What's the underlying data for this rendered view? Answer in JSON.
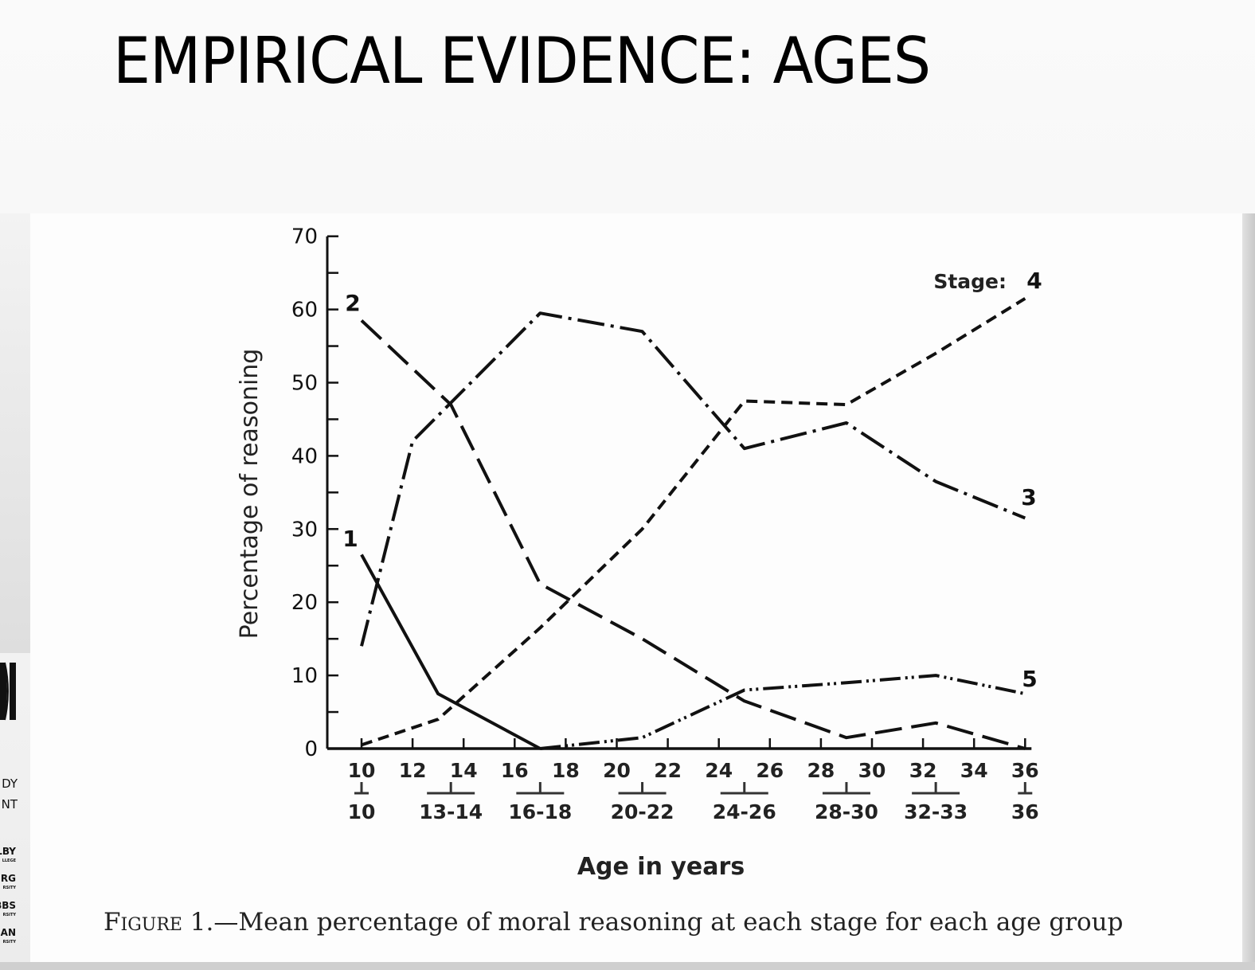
{
  "slide": {
    "title": "EMPIRICAL EVIDENCE: AGES",
    "sidebar_logo": {
      "lines": [
        "DY",
        "NT"
      ],
      "names": [
        {
          "name": "LBY",
          "inst": "LLEGE"
        },
        {
          "name": "RG",
          "inst": "RSITY"
        },
        {
          "name": "BBS",
          "inst": "RSITY"
        },
        {
          "name": "AN",
          "inst": "RSITY"
        }
      ]
    }
  },
  "figure": {
    "caption_prefix": "Figure 1.",
    "caption_text": "—Mean percentage of moral reasoning at each stage for each age group",
    "legend_label": "Stage:"
  },
  "chart_data": {
    "type": "line",
    "title": "Mean percentage of moral reasoning at each stage for each age group",
    "xlabel": "Age in years",
    "ylabel": "Percentage of reasoning",
    "ylim": [
      0,
      70
    ],
    "y_ticks": [
      0,
      10,
      20,
      30,
      40,
      50,
      60,
      70
    ],
    "x_ticks": [
      10,
      12,
      14,
      16,
      18,
      20,
      22,
      24,
      26,
      28,
      30,
      32,
      34,
      36
    ],
    "age_groups": [
      "10",
      "13-14",
      "16-18",
      "20-22",
      "24-26",
      "28-30",
      "32-33",
      "36"
    ],
    "age_group_centers": [
      10,
      13.5,
      17,
      21,
      25,
      29,
      32.5,
      36
    ],
    "grid": false,
    "legend_position": "inline labels at line ends",
    "series": [
      {
        "name": "1",
        "style": "solid",
        "points": [
          [
            10,
            26.5
          ],
          [
            13,
            7.5
          ],
          [
            17,
            0
          ]
        ]
      },
      {
        "name": "2",
        "style": "long-dash",
        "points": [
          [
            10,
            58.5
          ],
          [
            13.5,
            47
          ],
          [
            17,
            22.5
          ],
          [
            21,
            15
          ],
          [
            25,
            6.5
          ],
          [
            29,
            1.5
          ],
          [
            32.5,
            3.5
          ],
          [
            36,
            0
          ]
        ]
      },
      {
        "name": "3",
        "style": "dash-dot",
        "points": [
          [
            10,
            14
          ],
          [
            12,
            42
          ],
          [
            17,
            59.5
          ],
          [
            21,
            57
          ],
          [
            25,
            41
          ],
          [
            29,
            44.5
          ],
          [
            32.5,
            36.5
          ],
          [
            36,
            31.5
          ]
        ]
      },
      {
        "name": "4",
        "style": "short-dash",
        "points": [
          [
            10,
            0.5
          ],
          [
            13,
            4
          ],
          [
            17,
            16.5
          ],
          [
            21,
            30
          ],
          [
            25,
            47.5
          ],
          [
            29,
            47
          ],
          [
            32.5,
            54
          ],
          [
            36,
            61.5
          ]
        ]
      },
      {
        "name": "5",
        "style": "dash-dot-dot",
        "points": [
          [
            17,
            0
          ],
          [
            21,
            1.5
          ],
          [
            25,
            8
          ],
          [
            29,
            9
          ],
          [
            32.5,
            10
          ],
          [
            36,
            7.5
          ]
        ]
      }
    ]
  }
}
